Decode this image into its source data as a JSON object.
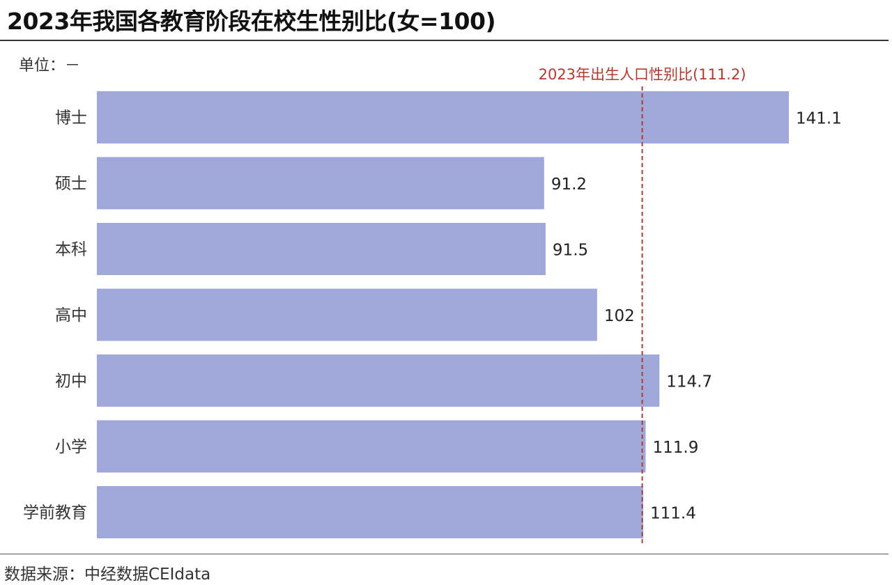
{
  "title": "2023年我国各教育阶段在校生性别比(女=100)",
  "unit": "单位：－",
  "source": "数据来源：中经数据CEIdata",
  "chart_data": {
    "type": "bar",
    "orientation": "horizontal",
    "categories": [
      "博士",
      "硕士",
      "本科",
      "高中",
      "初中",
      "小学",
      "学前教育"
    ],
    "values": [
      141.1,
      91.2,
      91.5,
      102,
      114.7,
      111.9,
      111.4
    ],
    "value_labels": [
      "141.1",
      "91.2",
      "91.5",
      "102",
      "114.7",
      "111.9",
      "111.4"
    ],
    "reference_line": {
      "value": 111.2,
      "label": "2023年出生人口性别比(111.2)",
      "color": "#b03a2e",
      "style": "dashed"
    },
    "bar_color": "#a0a8da",
    "xlim": [
      0,
      141.1
    ],
    "grid": false
  }
}
